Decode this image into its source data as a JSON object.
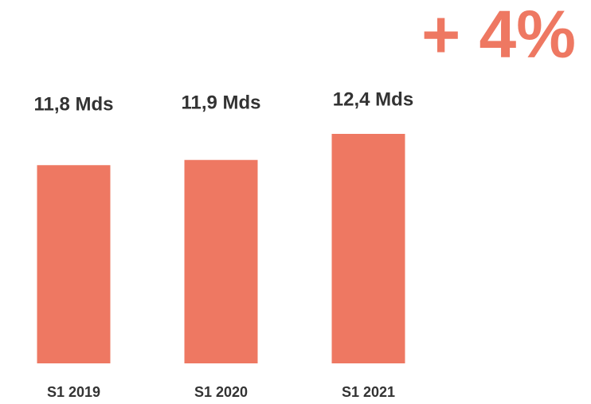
{
  "chart_data": {
    "type": "bar",
    "annotation": "+ 4%",
    "categories": [
      "S1 2019",
      "S1 2020",
      "S1 2021"
    ],
    "values": [
      11.8,
      11.9,
      12.4
    ],
    "value_labels": [
      "11,8 Mds",
      "11,9 Mds",
      "12,4 Mds"
    ],
    "color": "#ee7862",
    "ylim": [
      8,
      12.4
    ]
  }
}
